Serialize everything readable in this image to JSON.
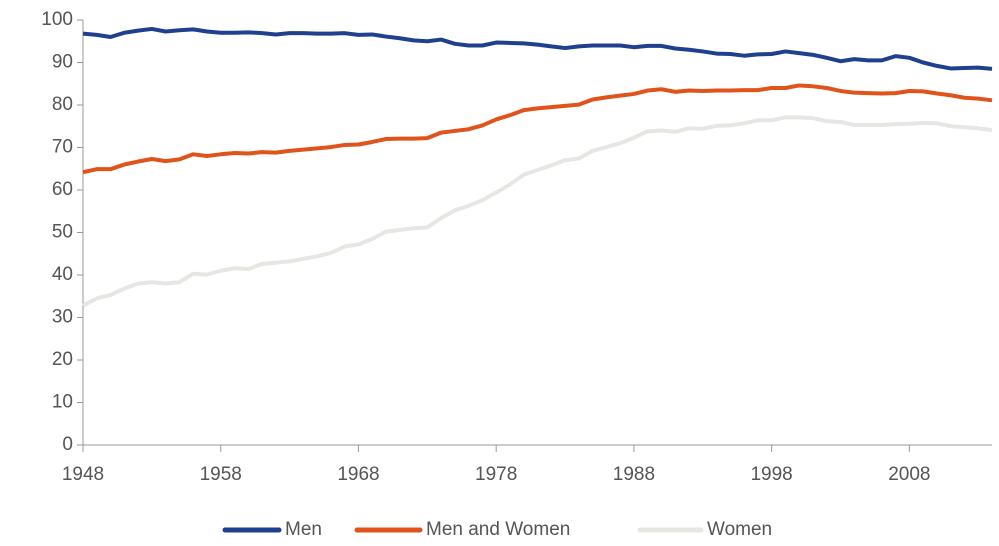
{
  "chart_data": {
    "type": "line",
    "x": [
      1948,
      1949,
      1950,
      1951,
      1952,
      1953,
      1954,
      1955,
      1956,
      1957,
      1958,
      1959,
      1960,
      1961,
      1962,
      1963,
      1964,
      1965,
      1966,
      1967,
      1968,
      1969,
      1970,
      1971,
      1972,
      1973,
      1974,
      1975,
      1976,
      1977,
      1978,
      1979,
      1980,
      1981,
      1982,
      1983,
      1984,
      1985,
      1986,
      1987,
      1988,
      1989,
      1990,
      1991,
      1992,
      1993,
      1994,
      1995,
      1996,
      1997,
      1998,
      1999,
      2000,
      2001,
      2002,
      2003,
      2004,
      2005,
      2006,
      2007,
      2008,
      2009,
      2010,
      2011,
      2012,
      2013,
      2014
    ],
    "series": [
      {
        "name": "Men",
        "color": "#1f3f8f",
        "values": [
          96.8,
          96.5,
          96,
          97,
          97.5,
          97.9,
          97.3,
          97.6,
          97.8,
          97.3,
          97,
          97,
          97.1,
          96.9,
          96.6,
          96.9,
          96.9,
          96.8,
          96.8,
          96.9,
          96.5,
          96.6,
          96.1,
          95.7,
          95.2,
          95,
          95.4,
          94.4,
          94,
          94,
          94.7,
          94.6,
          94.5,
          94.2,
          93.8,
          93.4,
          93.8,
          94,
          94,
          94,
          93.6,
          93.9,
          93.9,
          93.3,
          93,
          92.6,
          92.1,
          92,
          91.6,
          91.9,
          92,
          92.6,
          92.2,
          91.8,
          91.1,
          90.3,
          90.8,
          90.5,
          90.5,
          91.5,
          91.1,
          90,
          89.2,
          88.6,
          88.7,
          88.8,
          88.5
        ]
      },
      {
        "name": "Men and Women",
        "color": "#e0541c",
        "values": [
          64.2,
          64.9,
          64.9,
          66,
          66.7,
          67.3,
          66.8,
          67.2,
          68.4,
          68,
          68.4,
          68.7,
          68.6,
          68.9,
          68.8,
          69.2,
          69.5,
          69.8,
          70.1,
          70.6,
          70.7,
          71.3,
          72,
          72.1,
          72.1,
          72.2,
          73.5,
          73.9,
          74.3,
          75.2,
          76.6,
          77.6,
          78.8,
          79.2,
          79.5,
          79.8,
          80.1,
          81.3,
          81.8,
          82.2,
          82.6,
          83.4,
          83.7,
          83.1,
          83.4,
          83.3,
          83.4,
          83.4,
          83.5,
          83.5,
          84,
          84,
          84.6,
          84.4,
          84,
          83.3,
          82.9,
          82.8,
          82.7,
          82.8,
          83.3,
          83.2,
          82.7,
          82.3,
          81.7,
          81.5,
          81.1
        ]
      },
      {
        "name": "Women",
        "color": "#e8e6e2",
        "values": [
          32.8,
          34.5,
          35.3,
          36.8,
          38,
          38.3,
          38,
          38.3,
          40.3,
          40.1,
          41,
          41.6,
          41.4,
          42.6,
          42.9,
          43.2,
          43.8,
          44.4,
          45.2,
          46.7,
          47.2,
          48.5,
          50.2,
          50.6,
          51,
          51.2,
          53.4,
          55.2,
          56.3,
          57.6,
          59.4,
          61.3,
          63.6,
          64.7,
          65.8,
          67,
          67.4,
          69.2,
          70.1,
          71,
          72.3,
          73.8,
          74,
          73.7,
          74.5,
          74.4,
          75.1,
          75.2,
          75.7,
          76.4,
          76.4,
          77.1,
          77.1,
          76.9,
          76.2,
          76,
          75.3,
          75.3,
          75.3,
          75.5,
          75.6,
          75.8,
          75.7,
          75,
          74.8,
          74.5,
          74.1
        ]
      }
    ],
    "xlim": [
      1948,
      2014
    ],
    "xticks": [
      1948,
      1958,
      1968,
      1978,
      1988,
      1998,
      2008
    ],
    "ylim": [
      0,
      100
    ],
    "yticks": [
      0,
      10,
      20,
      30,
      40,
      50,
      60,
      70,
      80,
      90,
      100
    ],
    "grid": false,
    "legend": "bottom"
  }
}
